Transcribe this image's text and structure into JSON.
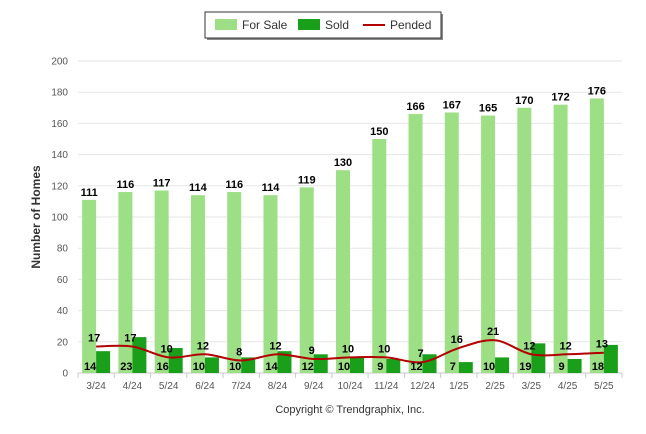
{
  "chart_data": {
    "type": "bar",
    "categories": [
      "3/24",
      "4/24",
      "5/24",
      "6/24",
      "7/24",
      "8/24",
      "9/24",
      "10/24",
      "11/24",
      "12/24",
      "1/25",
      "2/25",
      "3/25",
      "4/25",
      "5/25"
    ],
    "series": [
      {
        "name": "For Sale",
        "type": "bar",
        "color": "#9ddf85",
        "values": [
          111,
          116,
          117,
          114,
          116,
          114,
          119,
          130,
          150,
          166,
          167,
          165,
          170,
          172,
          176
        ]
      },
      {
        "name": "Sold",
        "type": "bar",
        "color": "#1a9f1a",
        "values": [
          14,
          23,
          16,
          10,
          10,
          14,
          12,
          10,
          9,
          12,
          7,
          10,
          19,
          9,
          18
        ]
      },
      {
        "name": "Pended",
        "type": "line",
        "color": "#b30000",
        "values": [
          17,
          17,
          10,
          12,
          8,
          12,
          9,
          10,
          10,
          7,
          16,
          21,
          12,
          12,
          13
        ]
      }
    ],
    "ylabel": "Number of Homes",
    "ylim": [
      0,
      200
    ],
    "yticks": [
      0,
      20,
      40,
      60,
      80,
      100,
      120,
      140,
      160,
      180,
      200
    ],
    "grid": true,
    "legend_position": "top-center"
  },
  "footer": {
    "copyright": "Copyright © Trendgraphix, Inc."
  }
}
